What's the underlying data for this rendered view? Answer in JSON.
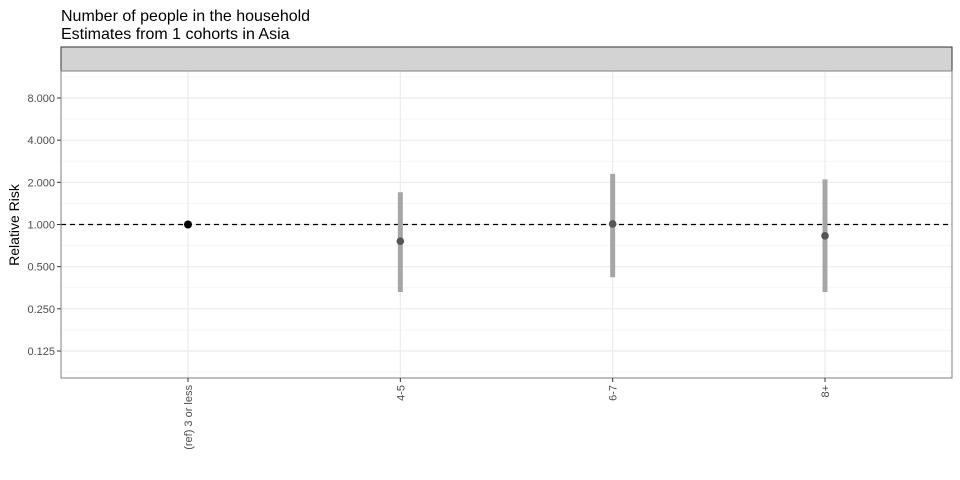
{
  "chart_data": {
    "type": "scatter",
    "subtype": "point-range (log scale)",
    "title": "Number of people in the household",
    "subtitle": "Estimates from 1 cohorts in Asia",
    "facet_strip": "",
    "ylabel": "Relative Risk",
    "xlabel": "",
    "y_scale": "log2",
    "ylim": [
      0.085,
      11.5
    ],
    "y_ticks": [
      0.125,
      0.25,
      0.5,
      1,
      2,
      4,
      8
    ],
    "y_tick_labels": [
      "0.125",
      "0.250",
      "0.500",
      "1.000",
      "2.000",
      "4.000",
      "8.000"
    ],
    "reference_line": 1,
    "grid": true,
    "x_tick_labels_rotated": true,
    "categories": [
      "(ref) 3 or less",
      "4-5",
      "6-7",
      "8+"
    ],
    "points": [
      {
        "category": "(ref) 3 or less",
        "estimate": 1.0,
        "lower": null,
        "upper": null,
        "reference": true
      },
      {
        "category": "4-5",
        "estimate": 0.76,
        "lower": 0.33,
        "upper": 1.7,
        "reference": false
      },
      {
        "category": "6-7",
        "estimate": 1.01,
        "lower": 0.42,
        "upper": 2.3,
        "reference": false
      },
      {
        "category": "8+",
        "estimate": 0.83,
        "lower": 0.33,
        "upper": 2.1,
        "reference": false
      }
    ],
    "colors": {
      "reference_point": "#000000",
      "estimate_point": "#555555",
      "interval": "#a6a6a6",
      "strip": "#d3d3d3",
      "grid_major": "#ebebeb",
      "grid_minor": "#f4f4f4",
      "panel_border": "#7f7f7f"
    }
  }
}
